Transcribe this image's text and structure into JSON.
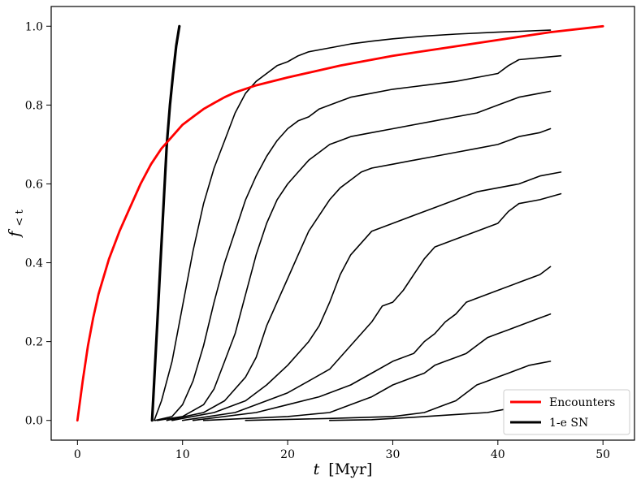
{
  "chart_data": {
    "type": "line",
    "title": "",
    "xlabel_italic": "t",
    "xlabel_rest": "[Myr]",
    "ylabel_main": "f",
    "ylabel_sub": "< t",
    "xlim": [
      -2.5,
      53
    ],
    "ylim": [
      -0.05,
      1.05
    ],
    "xticks": [
      0,
      10,
      20,
      30,
      40,
      50
    ],
    "yticks": [
      0.0,
      0.2,
      0.4,
      0.6,
      0.8,
      1.0
    ],
    "xtick_labels": [
      "0",
      "10",
      "20",
      "30",
      "40",
      "50"
    ],
    "ytick_labels": [
      "0.0",
      "0.2",
      "0.4",
      "0.6",
      "0.8",
      "1.0"
    ],
    "grid": false,
    "legend_position": "bottom-right",
    "series": [
      {
        "name": "Encounters",
        "color": "#ff0000",
        "width": 2.8,
        "x": [
          0,
          0.5,
          1,
          1.5,
          2,
          3,
          4,
          5,
          6,
          7,
          8,
          9,
          10,
          11,
          12,
          13,
          14,
          15,
          17,
          20,
          25,
          30,
          35,
          40,
          45,
          50
        ],
        "y": [
          0.0,
          0.1,
          0.19,
          0.26,
          0.32,
          0.41,
          0.48,
          0.54,
          0.6,
          0.65,
          0.69,
          0.72,
          0.75,
          0.77,
          0.79,
          0.805,
          0.82,
          0.832,
          0.85,
          0.87,
          0.9,
          0.925,
          0.945,
          0.965,
          0.985,
          1.0
        ]
      },
      {
        "name": "1-e SN",
        "color": "#000000",
        "width": 3.2,
        "x": [
          7.1,
          7.3,
          7.6,
          7.9,
          8.2,
          8.5,
          8.8,
          9.1,
          9.4,
          9.7
        ],
        "y": [
          0.0,
          0.1,
          0.25,
          0.4,
          0.55,
          0.7,
          0.8,
          0.88,
          0.95,
          1.0
        ]
      },
      {
        "color": "#000000",
        "width": 1.6,
        "x": [
          7.3,
          8,
          9,
          10,
          11,
          12,
          13,
          14,
          15,
          16,
          17,
          18,
          19,
          20,
          21,
          22,
          24,
          26,
          28,
          30,
          33,
          36,
          40,
          45
        ],
        "y": [
          0.0,
          0.05,
          0.15,
          0.29,
          0.43,
          0.55,
          0.64,
          0.71,
          0.78,
          0.83,
          0.86,
          0.88,
          0.9,
          0.91,
          0.925,
          0.935,
          0.945,
          0.955,
          0.962,
          0.968,
          0.975,
          0.98,
          0.985,
          0.99
        ]
      },
      {
        "color": "#000000",
        "width": 1.6,
        "x": [
          7.4,
          9,
          10,
          11,
          12,
          13,
          14,
          15,
          16,
          17,
          18,
          19,
          20,
          21,
          22,
          23,
          24,
          25,
          26,
          28,
          30,
          33,
          36,
          38,
          40,
          41,
          42,
          44,
          46
        ],
        "y": [
          0.0,
          0.01,
          0.04,
          0.1,
          0.19,
          0.3,
          0.4,
          0.48,
          0.56,
          0.62,
          0.67,
          0.71,
          0.74,
          0.76,
          0.77,
          0.79,
          0.8,
          0.81,
          0.82,
          0.83,
          0.84,
          0.85,
          0.86,
          0.87,
          0.88,
          0.9,
          0.915,
          0.92,
          0.925
        ]
      },
      {
        "color": "#000000",
        "width": 1.6,
        "x": [
          7.6,
          10,
          12,
          13,
          14,
          15,
          16,
          17,
          18,
          19,
          20,
          21,
          22,
          23,
          24,
          25,
          26,
          28,
          30,
          32,
          34,
          36,
          38,
          40,
          42,
          44,
          45
        ],
        "y": [
          0.0,
          0.01,
          0.04,
          0.08,
          0.15,
          0.22,
          0.32,
          0.42,
          0.5,
          0.56,
          0.6,
          0.63,
          0.66,
          0.68,
          0.7,
          0.71,
          0.72,
          0.73,
          0.74,
          0.75,
          0.76,
          0.77,
          0.78,
          0.8,
          0.82,
          0.83,
          0.835
        ]
      },
      {
        "color": "#000000",
        "width": 1.6,
        "x": [
          8.5,
          12,
          14,
          16,
          17,
          18,
          19,
          20,
          21,
          22,
          23,
          24,
          25,
          26,
          27,
          28,
          30,
          32,
          34,
          36,
          38,
          40,
          41,
          42,
          44,
          45
        ],
        "y": [
          0.0,
          0.02,
          0.05,
          0.11,
          0.16,
          0.24,
          0.3,
          0.36,
          0.42,
          0.48,
          0.52,
          0.56,
          0.59,
          0.61,
          0.63,
          0.64,
          0.65,
          0.66,
          0.67,
          0.68,
          0.69,
          0.7,
          0.71,
          0.72,
          0.73,
          0.74
        ]
      },
      {
        "color": "#000000",
        "width": 1.6,
        "x": [
          9,
          13,
          16,
          18,
          20,
          22,
          23,
          24,
          25,
          26,
          27,
          28,
          30,
          32,
          34,
          36,
          38,
          40,
          42,
          44,
          46
        ],
        "y": [
          0.0,
          0.02,
          0.05,
          0.09,
          0.14,
          0.2,
          0.24,
          0.3,
          0.37,
          0.42,
          0.45,
          0.48,
          0.5,
          0.52,
          0.54,
          0.56,
          0.58,
          0.59,
          0.6,
          0.62,
          0.63
        ]
      },
      {
        "color": "#000000",
        "width": 1.6,
        "x": [
          10,
          15,
          18,
          20,
          22,
          24,
          26,
          28,
          29,
          30,
          31,
          32,
          33,
          34,
          36,
          38,
          40,
          41,
          42,
          44,
          46
        ],
        "y": [
          0.0,
          0.02,
          0.05,
          0.07,
          0.1,
          0.13,
          0.19,
          0.25,
          0.29,
          0.3,
          0.33,
          0.37,
          0.41,
          0.44,
          0.46,
          0.48,
          0.5,
          0.53,
          0.55,
          0.56,
          0.575
        ]
      },
      {
        "color": "#000000",
        "width": 1.6,
        "x": [
          11,
          17,
          20,
          23,
          26,
          28,
          30,
          32,
          33,
          34,
          35,
          36,
          37,
          38,
          40,
          42,
          44,
          45
        ],
        "y": [
          0.0,
          0.02,
          0.04,
          0.06,
          0.09,
          0.12,
          0.15,
          0.17,
          0.2,
          0.22,
          0.25,
          0.27,
          0.3,
          0.31,
          0.33,
          0.35,
          0.37,
          0.39
        ]
      },
      {
        "color": "#000000",
        "width": 1.6,
        "x": [
          12,
          20,
          24,
          26,
          28,
          30,
          32,
          33,
          34,
          35,
          36,
          37,
          38,
          39,
          40,
          41,
          42,
          43,
          44,
          45
        ],
        "y": [
          0.0,
          0.01,
          0.02,
          0.04,
          0.06,
          0.09,
          0.11,
          0.12,
          0.14,
          0.15,
          0.16,
          0.17,
          0.19,
          0.21,
          0.22,
          0.23,
          0.24,
          0.25,
          0.26,
          0.27
        ]
      },
      {
        "color": "#000000",
        "width": 1.6,
        "x": [
          16,
          24,
          30,
          33,
          35,
          36,
          37,
          38,
          39,
          40,
          41,
          42,
          43,
          44,
          45
        ],
        "y": [
          0.0,
          0.005,
          0.01,
          0.02,
          0.04,
          0.05,
          0.07,
          0.09,
          0.1,
          0.11,
          0.12,
          0.13,
          0.14,
          0.145,
          0.15
        ]
      },
      {
        "color": "#000000",
        "width": 1.6,
        "x": [
          24,
          28,
          32,
          36,
          39,
          41,
          42,
          43,
          44,
          45
        ],
        "y": [
          0.0,
          0.002,
          0.008,
          0.015,
          0.02,
          0.03,
          0.05,
          0.06,
          0.065,
          0.07
        ]
      }
    ]
  }
}
